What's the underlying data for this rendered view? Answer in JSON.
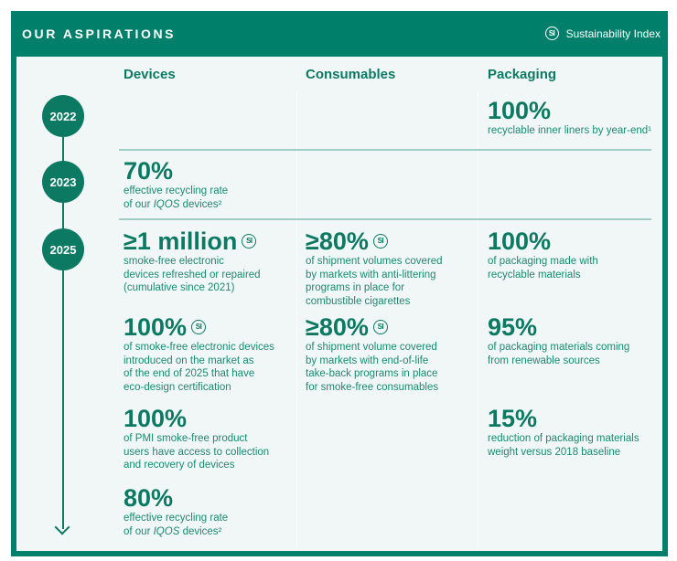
{
  "header": {
    "title": "OUR ASPIRATIONS",
    "si_symbol": "SI",
    "legend_label": "Sustainability Index"
  },
  "columns": [
    "Devices",
    "Consumables",
    "Packaging"
  ],
  "years": [
    "2022",
    "2023",
    "2025"
  ],
  "items": {
    "p2022": {
      "value": "100%",
      "desc": "recyclable inner liners by year-end¹"
    },
    "d2023": {
      "value": "70%",
      "desc1": "effective recycling rate",
      "desc2a": "of our ",
      "desc2b": "IQOS",
      "desc2c": " devices²"
    },
    "d1": {
      "value": "≥1 million",
      "si": true,
      "desc": [
        "smoke-free electronic",
        "devices refreshed or repaired",
        "(cumulative since 2021)"
      ]
    },
    "d2": {
      "value": "100%",
      "si": true,
      "desc": [
        "of smoke-free electronic devices",
        "introduced on the market as",
        "of the end of 2025 that have",
        "eco-design certification"
      ]
    },
    "d3": {
      "value": "100%",
      "desc": [
        "of PMI smoke-free product",
        "users have access to collection",
        "and recovery of devices"
      ]
    },
    "d4": {
      "value": "80%",
      "desc1": "effective recycling rate",
      "desc2a": "of our ",
      "desc2b": "IQOS",
      "desc2c": " devices²"
    },
    "c1": {
      "value": "≥80%",
      "si": true,
      "desc": [
        "of shipment volumes covered",
        "by markets with anti-littering",
        "programs in place for",
        "combustible cigarettes"
      ]
    },
    "c2": {
      "value": "≥80%",
      "si": true,
      "desc": [
        "of shipment volume covered",
        "by markets with end-of-life",
        "take-back programs in place",
        "for smoke-free consumables"
      ]
    },
    "p1": {
      "value": "100%",
      "desc": [
        "of packaging made with",
        "recyclable materials"
      ]
    },
    "p2": {
      "value": "95%",
      "desc": [
        "of packaging materials coming",
        "from renewable sources"
      ]
    },
    "p3": {
      "value": "15%",
      "desc": [
        "reduction of packaging materials",
        "weight versus 2018 baseline"
      ]
    }
  },
  "colors": {
    "brand_green": "#00806a",
    "text_green": "#0c7a63",
    "panel": "#f1f7f7"
  }
}
